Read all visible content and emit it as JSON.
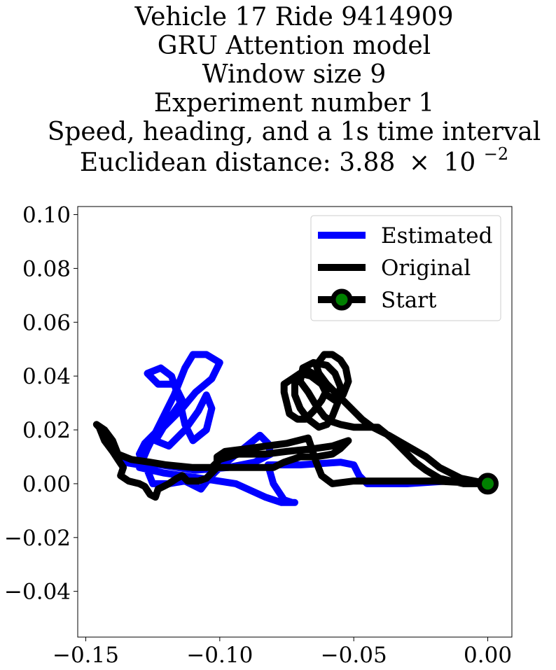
{
  "title_lines": [
    "Vehicle 17 Ride 9414909",
    "GRU Attention model",
    "Window size 9",
    "Experiment number 1",
    "Speed, heading, and a 1s time interval"
  ],
  "title_distance_prefix": "Euclidean distance: 3.88",
  "title_distance_times": "×",
  "title_distance_base": "10",
  "title_distance_exp": "−2",
  "chart_data": {
    "type": "line",
    "title": "Vehicle 17 Ride 9414909 / GRU Attention model / Window size 9 / Experiment number 1 / Speed, heading, and a 1s time interval / Euclidean distance: 3.88×10^-2",
    "xlabel": "",
    "ylabel": "",
    "xlim": [
      -0.153,
      0.009
    ],
    "ylim": [
      -0.057,
      0.103
    ],
    "x_ticks": [
      -0.15,
      -0.1,
      -0.05,
      0.0
    ],
    "x_tick_labels": [
      "−0.15",
      "−0.10",
      "−0.05",
      "0.00"
    ],
    "y_ticks": [
      -0.04,
      -0.02,
      0.0,
      0.02,
      0.04,
      0.06,
      0.08,
      0.1
    ],
    "y_tick_labels": [
      "−0.04",
      "−0.02",
      "0.00",
      "0.02",
      "0.04",
      "0.06",
      "0.08",
      "0.10"
    ],
    "grid": false,
    "legend_position": "top-right",
    "series": [
      {
        "name": "Estimated",
        "color": "#0000ff",
        "points": [
          [
            0.0,
            0.0
          ],
          [
            -0.015,
            0.001
          ],
          [
            -0.03,
            0.0
          ],
          [
            -0.045,
            0.0
          ],
          [
            -0.048,
            0.003
          ],
          [
            -0.05,
            0.007
          ],
          [
            -0.055,
            0.008
          ],
          [
            -0.07,
            0.007
          ],
          [
            -0.082,
            0.007
          ],
          [
            -0.08,
            0.0
          ],
          [
            -0.076,
            -0.006
          ],
          [
            -0.073,
            -0.007
          ],
          [
            -0.072,
            -0.007
          ],
          [
            -0.077,
            -0.007
          ],
          [
            -0.083,
            -0.005
          ],
          [
            -0.094,
            0.0
          ],
          [
            -0.107,
            0.002
          ],
          [
            -0.121,
            0.004
          ],
          [
            -0.13,
            0.006
          ],
          [
            -0.127,
            0.013
          ],
          [
            -0.123,
            0.021
          ],
          [
            -0.117,
            0.033
          ],
          [
            -0.113,
            0.043
          ],
          [
            -0.11,
            0.048
          ],
          [
            -0.105,
            0.048
          ],
          [
            -0.1,
            0.045
          ],
          [
            -0.103,
            0.039
          ],
          [
            -0.109,
            0.034
          ],
          [
            -0.114,
            0.028
          ],
          [
            -0.121,
            0.021
          ],
          [
            -0.124,
            0.016
          ],
          [
            -0.119,
            0.014
          ],
          [
            -0.113,
            0.02
          ],
          [
            -0.108,
            0.027
          ],
          [
            -0.105,
            0.033
          ],
          [
            -0.103,
            0.028
          ],
          [
            -0.105,
            0.02
          ],
          [
            -0.11,
            0.016
          ],
          [
            -0.113,
            0.022
          ],
          [
            -0.115,
            0.031
          ],
          [
            -0.118,
            0.04
          ],
          [
            -0.122,
            0.043
          ],
          [
            -0.127,
            0.041
          ],
          [
            -0.123,
            0.037
          ],
          [
            -0.117,
            0.037
          ],
          [
            -0.114,
            0.031
          ],
          [
            -0.119,
            0.024
          ],
          [
            -0.124,
            0.019
          ],
          [
            -0.128,
            0.015
          ],
          [
            -0.13,
            0.011
          ],
          [
            -0.127,
            0.005
          ],
          [
            -0.125,
            0.0
          ],
          [
            -0.119,
            0.0
          ],
          [
            -0.113,
            0.001
          ],
          [
            -0.107,
            -0.002
          ],
          [
            -0.104,
            0.002
          ],
          [
            -0.1,
            0.006
          ],
          [
            -0.095,
            0.01
          ],
          [
            -0.09,
            0.014
          ],
          [
            -0.085,
            0.018
          ],
          [
            -0.082,
            0.015
          ],
          [
            -0.081,
            0.011
          ],
          [
            -0.087,
            0.008
          ],
          [
            -0.097,
            0.006
          ],
          [
            -0.109,
            0.005
          ],
          [
            -0.122,
            0.007
          ],
          [
            -0.134,
            0.009
          ],
          [
            -0.136,
            0.008
          ],
          [
            -0.13,
            0.007
          ]
        ]
      },
      {
        "name": "Original",
        "color": "#000000",
        "points": [
          [
            0.0,
            0.0
          ],
          [
            -0.01,
            0.002
          ],
          [
            -0.018,
            0.006
          ],
          [
            -0.023,
            0.01
          ],
          [
            -0.03,
            0.014
          ],
          [
            -0.037,
            0.018
          ],
          [
            -0.043,
            0.021
          ],
          [
            -0.047,
            0.024
          ],
          [
            -0.052,
            0.029
          ],
          [
            -0.056,
            0.033
          ],
          [
            -0.06,
            0.037
          ],
          [
            -0.063,
            0.041
          ],
          [
            -0.064,
            0.044
          ],
          [
            -0.061,
            0.048
          ],
          [
            -0.058,
            0.048
          ],
          [
            -0.055,
            0.046
          ],
          [
            -0.053,
            0.043
          ],
          [
            -0.052,
            0.038
          ],
          [
            -0.054,
            0.033
          ],
          [
            -0.057,
            0.031
          ],
          [
            -0.06,
            0.033
          ],
          [
            -0.062,
            0.037
          ],
          [
            -0.066,
            0.04
          ],
          [
            -0.07,
            0.041
          ],
          [
            -0.073,
            0.039
          ],
          [
            -0.076,
            0.037
          ],
          [
            -0.076,
            0.034
          ],
          [
            -0.075,
            0.03
          ],
          [
            -0.074,
            0.026
          ],
          [
            -0.071,
            0.024
          ],
          [
            -0.068,
            0.024
          ],
          [
            -0.065,
            0.027
          ],
          [
            -0.062,
            0.031
          ],
          [
            -0.06,
            0.035
          ],
          [
            -0.062,
            0.039
          ],
          [
            -0.067,
            0.042
          ],
          [
            -0.07,
            0.041
          ],
          [
            -0.072,
            0.037
          ],
          [
            -0.072,
            0.033
          ],
          [
            -0.07,
            0.028
          ],
          [
            -0.067,
            0.024
          ],
          [
            -0.063,
            0.021
          ],
          [
            -0.06,
            0.022
          ],
          [
            -0.058,
            0.025
          ],
          [
            -0.056,
            0.03
          ],
          [
            -0.055,
            0.036
          ],
          [
            -0.057,
            0.041
          ],
          [
            -0.06,
            0.044
          ],
          [
            -0.065,
            0.045
          ],
          [
            -0.069,
            0.043
          ],
          [
            -0.07,
            0.038
          ],
          [
            -0.067,
            0.034
          ],
          [
            -0.064,
            0.029
          ],
          [
            -0.061,
            0.025
          ],
          [
            -0.058,
            0.023
          ],
          [
            -0.055,
            0.022
          ],
          [
            -0.05,
            0.021
          ],
          [
            -0.045,
            0.021
          ],
          [
            -0.041,
            0.021
          ],
          [
            -0.036,
            0.017
          ],
          [
            -0.031,
            0.012
          ],
          [
            -0.027,
            0.008
          ],
          [
            -0.023,
            0.005
          ],
          [
            -0.018,
            0.002
          ],
          [
            -0.009,
            0.0
          ],
          [
            0.0,
            0.0
          ],
          [
            -0.02,
            0.001
          ],
          [
            -0.035,
            0.001
          ],
          [
            -0.05,
            0.001
          ],
          [
            -0.058,
            0.0
          ],
          [
            -0.062,
            0.003
          ],
          [
            -0.064,
            0.008
          ],
          [
            -0.066,
            0.014
          ],
          [
            -0.067,
            0.017
          ],
          [
            -0.075,
            0.015
          ],
          [
            -0.09,
            0.013
          ],
          [
            -0.098,
            0.012
          ],
          [
            -0.101,
            0.01
          ],
          [
            -0.101,
            0.006
          ],
          [
            -0.105,
            0.002
          ],
          [
            -0.108,
            0.001
          ],
          [
            -0.11,
            0.001
          ],
          [
            -0.112,
            0.001
          ],
          [
            -0.114,
            0.003
          ],
          [
            -0.116,
            0.002
          ],
          [
            -0.119,
            0.0
          ],
          [
            -0.121,
            -0.001
          ],
          [
            -0.123,
            -0.002
          ],
          [
            -0.124,
            -0.005
          ],
          [
            -0.126,
            -0.004
          ],
          [
            -0.128,
            -0.001
          ],
          [
            -0.13,
            0.0
          ],
          [
            -0.134,
            0.001
          ],
          [
            -0.137,
            0.003
          ],
          [
            -0.136,
            0.006
          ],
          [
            -0.138,
            0.009
          ],
          [
            -0.14,
            0.012
          ],
          [
            -0.143,
            0.016
          ],
          [
            -0.145,
            0.021
          ],
          [
            -0.146,
            0.022
          ],
          [
            -0.143,
            0.02
          ],
          [
            -0.14,
            0.016
          ],
          [
            -0.138,
            0.011
          ],
          [
            -0.133,
            0.009
          ],
          [
            -0.126,
            0.008
          ],
          [
            -0.12,
            0.007
          ],
          [
            -0.11,
            0.006
          ],
          [
            -0.098,
            0.006
          ],
          [
            -0.088,
            0.006
          ],
          [
            -0.08,
            0.006
          ],
          [
            -0.076,
            0.008
          ],
          [
            -0.07,
            0.01
          ],
          [
            -0.064,
            0.01
          ],
          [
            -0.058,
            0.011
          ],
          [
            -0.055,
            0.013
          ],
          [
            -0.052,
            0.016
          ],
          [
            -0.058,
            0.014
          ],
          [
            -0.065,
            0.013
          ],
          [
            -0.075,
            0.012
          ],
          [
            -0.083,
            0.011
          ],
          [
            -0.093,
            0.011
          ],
          [
            -0.1,
            0.009
          ],
          [
            -0.103,
            0.006
          ]
        ]
      }
    ],
    "start_point": {
      "name": "Start",
      "x": 0.0,
      "y": 0.0,
      "marker_color": "#008000",
      "edge_color": "#000000"
    },
    "legend": [
      "Estimated",
      "Original",
      "Start"
    ]
  }
}
